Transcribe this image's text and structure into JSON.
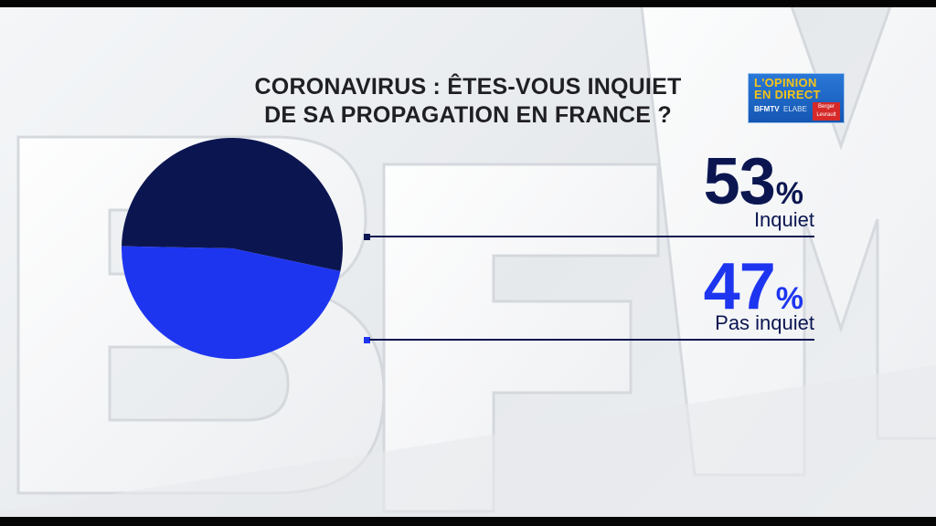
{
  "title": {
    "line1": "CORONAVIRUS : ÊTES-VOUS INQUIET",
    "line2": "DE SA PROPAGATION EN FRANCE ?"
  },
  "logo": {
    "line1": "L'OPINION",
    "line2": "EN DIRECT",
    "brand": "BFMTV",
    "pollster": "ELABE",
    "partner": "Berger Levrault"
  },
  "watermark": {
    "name": "bfm-watermark"
  },
  "colors": {
    "inquiet": "#0b1651",
    "pas_inquiet": "#1e35f0"
  },
  "chart_data": {
    "type": "pie",
    "title": "CORONAVIRUS : ÊTES-VOUS INQUIET DE SA PROPAGATION EN FRANCE ?",
    "categories": [
      "Inquiet",
      "Pas inquiet"
    ],
    "values": [
      53,
      47
    ],
    "unit": "%",
    "colors": [
      "#0b1651",
      "#1e35f0"
    ],
    "legend_placement": "right",
    "value_labels": [
      {
        "number": "53",
        "symbol": "%",
        "label": "Inquiet"
      },
      {
        "number": "47",
        "symbol": "%",
        "label": "Pas inquiet"
      }
    ]
  }
}
